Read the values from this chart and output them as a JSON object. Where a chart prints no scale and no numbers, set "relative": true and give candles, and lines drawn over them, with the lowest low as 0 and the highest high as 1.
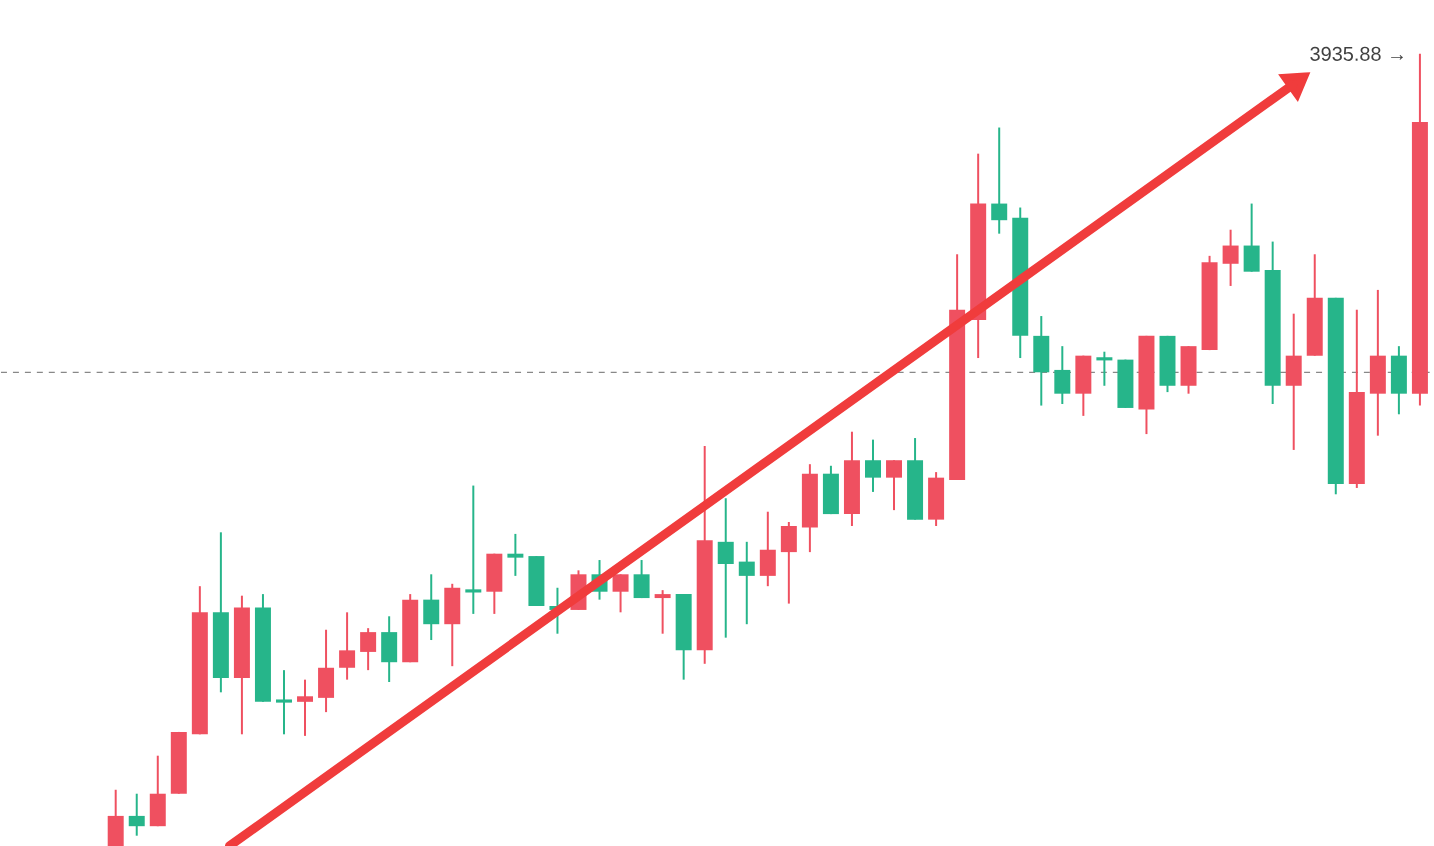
{
  "chart_data": {
    "type": "candlestick",
    "relative": true,
    "categories": [
      null,
      null,
      null,
      null,
      null,
      null,
      null,
      null,
      null,
      null,
      null,
      null,
      null,
      null,
      null,
      null,
      null,
      null,
      null,
      null,
      null,
      null,
      null,
      null,
      null,
      null,
      null,
      null,
      null,
      null,
      null,
      null,
      null,
      null,
      null,
      null,
      null,
      null,
      null,
      null,
      null,
      null,
      null,
      null,
      null,
      null,
      null,
      null,
      null,
      null,
      null,
      null,
      null,
      null,
      null,
      null,
      null,
      null,
      null,
      null,
      null,
      null,
      null
    ],
    "ohlc": [
      [
        0,
        0.071,
        0,
        0.038
      ],
      [
        0.038,
        0.066,
        0.013,
        0.025
      ],
      [
        0.025,
        0.114,
        0.025,
        0.066
      ],
      [
        0.066,
        0.144,
        0.066,
        0.144
      ],
      [
        0.141,
        0.328,
        0.141,
        0.295
      ],
      [
        0.295,
        0.396,
        0.194,
        0.212
      ],
      [
        0.212,
        0.316,
        0.141,
        0.301
      ],
      [
        0.301,
        0.318,
        0.182,
        0.182
      ],
      [
        0.184,
        0.222,
        0.141,
        0.182
      ],
      [
        0.182,
        0.21,
        0.139,
        0.189
      ],
      [
        0.187,
        0.273,
        0.169,
        0.225
      ],
      [
        0.225,
        0.295,
        0.21,
        0.247
      ],
      [
        0.245,
        0.275,
        0.222,
        0.27
      ],
      [
        0.27,
        0.29,
        0.207,
        0.232
      ],
      [
        0.232,
        0.318,
        0.232,
        0.311
      ],
      [
        0.311,
        0.343,
        0.26,
        0.28
      ],
      [
        0.28,
        0.331,
        0.227,
        0.326
      ],
      [
        0.323,
        0.455,
        0.293,
        0.321
      ],
      [
        0.321,
        0.369,
        0.293,
        0.369
      ],
      [
        0.369,
        0.394,
        0.341,
        0.364
      ],
      [
        0.366,
        0.366,
        0.303,
        0.303
      ],
      [
        0.303,
        0.326,
        0.268,
        0.298
      ],
      [
        0.298,
        0.348,
        0.298,
        0.343
      ],
      [
        0.343,
        0.361,
        0.311,
        0.321
      ],
      [
        0.321,
        0.343,
        0.295,
        0.343
      ],
      [
        0.343,
        0.361,
        0.313,
        0.313
      ],
      [
        0.313,
        0.323,
        0.268,
        0.318
      ],
      [
        0.318,
        0.318,
        0.21,
        0.247
      ],
      [
        0.247,
        0.505,
        0.23,
        0.386
      ],
      [
        0.384,
        0.439,
        0.263,
        0.356
      ],
      [
        0.359,
        0.384,
        0.28,
        0.341
      ],
      [
        0.341,
        0.422,
        0.328,
        0.374
      ],
      [
        0.371,
        0.409,
        0.306,
        0.404
      ],
      [
        0.402,
        0.482,
        0.371,
        0.47
      ],
      [
        0.47,
        0.48,
        0.419,
        0.419
      ],
      [
        0.419,
        0.523,
        0.404,
        0.487
      ],
      [
        0.487,
        0.513,
        0.447,
        0.465
      ],
      [
        0.465,
        0.487,
        0.424,
        0.487
      ],
      [
        0.487,
        0.515,
        0.412,
        0.412
      ],
      [
        0.412,
        0.472,
        0.404,
        0.465
      ],
      [
        0.462,
        0.747,
        0.462,
        0.677
      ],
      [
        0.664,
        0.874,
        0.616,
        0.811
      ],
      [
        0.811,
        0.907,
        0.773,
        0.79
      ],
      [
        0.793,
        0.806,
        0.616,
        0.644
      ],
      [
        0.644,
        0.669,
        0.556,
        0.598
      ],
      [
        0.601,
        0.631,
        0.558,
        0.571
      ],
      [
        0.571,
        0.619,
        0.543,
        0.619
      ],
      [
        0.616,
        0.624,
        0.581,
        0.614
      ],
      [
        0.614,
        0.614,
        0.553,
        0.553
      ],
      [
        0.551,
        0.644,
        0.52,
        0.644
      ],
      [
        0.644,
        0.644,
        0.573,
        0.581
      ],
      [
        0.581,
        0.631,
        0.571,
        0.631
      ],
      [
        0.626,
        0.745,
        0.626,
        0.737
      ],
      [
        0.735,
        0.778,
        0.707,
        0.758
      ],
      [
        0.758,
        0.811,
        0.725,
        0.725
      ],
      [
        0.727,
        0.763,
        0.558,
        0.581
      ],
      [
        0.581,
        0.672,
        0.5,
        0.619
      ],
      [
        0.619,
        0.747,
        0.619,
        0.692
      ],
      [
        0.692,
        0.692,
        0.444,
        0.457
      ],
      [
        0.457,
        0.677,
        0.452,
        0.573
      ],
      [
        0.571,
        0.702,
        0.518,
        0.619
      ],
      [
        0.619,
        0.631,
        0.545,
        0.571
      ],
      [
        0.571,
        1,
        0.556,
        0.914
      ]
    ],
    "colors": [
      "#ef5060",
      "#26b58a",
      "#ef5060",
      "#ef5060",
      "#ef5060",
      "#26b58a",
      "#ef5060",
      "#26b58a",
      "#26b58a",
      "#ef5060",
      "#ef5060",
      "#ef5060",
      "#ef5060",
      "#26b58a",
      "#ef5060",
      "#26b58a",
      "#ef5060",
      "#26b58a",
      "#ef5060",
      "#26b58a",
      "#26b58a",
      "#26b58a",
      "#ef5060",
      "#26b58a",
      "#ef5060",
      "#26b58a",
      "#ef5060",
      "#26b58a",
      "#ef5060",
      "#26b58a",
      "#26b58a",
      "#ef5060",
      "#ef5060",
      "#ef5060",
      "#26b58a",
      "#ef5060",
      "#26b58a",
      "#ef5060",
      "#26b58a",
      "#ef5060",
      "#ef5060",
      "#ef5060",
      "#26b58a",
      "#26b58a",
      "#26b58a",
      "#26b58a",
      "#ef5060",
      "#26b58a",
      "#26b58a",
      "#ef5060",
      "#26b58a",
      "#ef5060",
      "#ef5060",
      "#ef5060",
      "#26b58a",
      "#26b58a",
      "#ef5060",
      "#ef5060",
      "#26b58a",
      "#ef5060",
      "#ef5060",
      "#26b58a",
      "#ef5060"
    ],
    "ref_lines": [
      {
        "axis": "y",
        "value": 0.598,
        "color": "#888888",
        "line_style": "dashed"
      }
    ],
    "annotations": [
      "3935.88 →"
    ]
  }
}
